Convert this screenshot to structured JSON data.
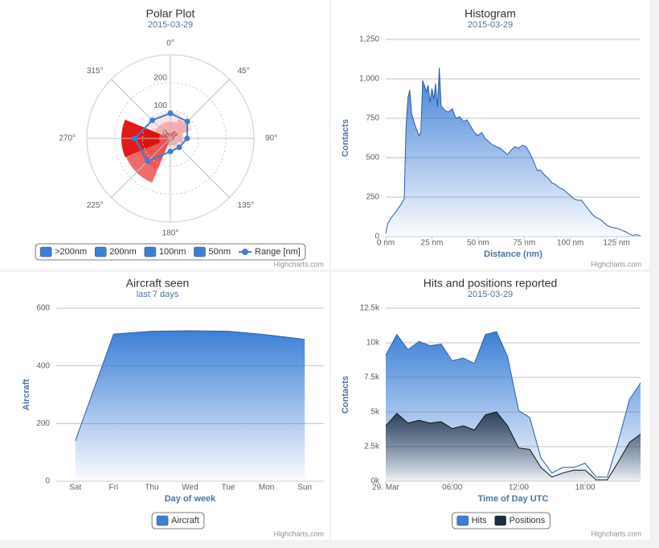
{
  "chart_data": [
    {
      "type": "polar",
      "title": "Polar Plot",
      "subtitle": "2015-03-29",
      "x": [
        0,
        45,
        90,
        135,
        180,
        225,
        270,
        315
      ],
      "xlim": [
        0,
        360
      ],
      "xticks": [
        {
          "value": 0,
          "label": "0°"
        },
        {
          "value": 45,
          "label": "45°"
        },
        {
          "value": 90,
          "label": "90°"
        },
        {
          "value": 135,
          "label": "135°"
        },
        {
          "value": 180,
          "label": "180°"
        },
        {
          "value": 225,
          "label": "225°"
        },
        {
          "value": 270,
          "label": "270°"
        },
        {
          "value": 315,
          "label": "315°"
        }
      ],
      "ylim": [
        0,
        300
      ],
      "yticks": [
        0,
        100,
        200
      ],
      "grid": true,
      "legend": "bottom",
      "legend_symbol_color": "#3d7fd6",
      "series": [
        {
          "name": ">200nm",
          "color": "#ef5b5b",
          "values": [
            20,
            30,
            15,
            10,
            10,
            172,
            40,
            25
          ]
        },
        {
          "name": "200nm",
          "color": "#e00000",
          "values": [
            15,
            25,
            12,
            8,
            8,
            120,
            176,
            20
          ]
        },
        {
          "name": "100nm",
          "color": "#f4a6a6",
          "values": [
            60,
            75,
            45,
            30,
            25,
            100,
            110,
            60
          ]
        },
        {
          "name": "50nm",
          "color": "#fbe0e0",
          "values": [
            95,
            85,
            50,
            45,
            45,
            60,
            55,
            95
          ]
        },
        {
          "name": "Range [nm]",
          "type": "line",
          "color": "#3d7fd6",
          "values": [
            90,
            86,
            60,
            45,
            47,
            115,
            128,
            92
          ]
        }
      ],
      "credits": "Highcharts.com"
    },
    {
      "type": "area",
      "title": "Histogram",
      "subtitle": "2015-03-29",
      "ylabel": "Contacts",
      "xlabel": "Distance (nm)",
      "x": [
        0,
        1,
        3,
        5,
        8,
        10,
        11,
        12,
        13,
        14,
        16,
        18,
        19,
        20,
        22,
        23,
        24,
        25,
        26,
        27,
        28,
        29,
        30,
        32,
        34,
        36,
        38,
        40,
        42,
        44,
        46,
        48,
        50,
        52,
        54,
        56,
        58,
        60,
        62,
        64,
        66,
        68,
        70,
        72,
        74,
        76,
        78,
        80,
        82,
        84,
        86,
        88,
        90,
        92,
        94,
        96,
        98,
        100,
        102,
        104,
        106,
        108,
        110,
        112,
        114,
        116,
        118,
        120,
        122,
        124,
        126,
        128,
        130,
        132,
        134,
        136,
        138
      ],
      "values": [
        20,
        80,
        120,
        150,
        200,
        240,
        700,
        880,
        930,
        780,
        700,
        640,
        660,
        990,
        920,
        960,
        850,
        940,
        870,
        970,
        820,
        1070,
        830,
        800,
        790,
        810,
        750,
        760,
        730,
        740,
        700,
        660,
        640,
        660,
        620,
        600,
        580,
        570,
        560,
        540,
        520,
        550,
        570,
        560,
        580,
        570,
        530,
        480,
        420,
        420,
        390,
        370,
        340,
        330,
        310,
        300,
        280,
        260,
        240,
        230,
        230,
        200,
        170,
        140,
        120,
        110,
        90,
        70,
        60,
        55,
        50,
        40,
        30,
        15,
        8,
        12,
        5
      ],
      "color": "#3d7fd6",
      "xlim": [
        0,
        138
      ],
      "xticks": [
        {
          "value": 0,
          "label": "0 nm"
        },
        {
          "value": 25,
          "label": "25 nm"
        },
        {
          "value": 50,
          "label": "50 nm"
        },
        {
          "value": 75,
          "label": "75 nm"
        },
        {
          "value": 100,
          "label": "100 nm"
        },
        {
          "value": 125,
          "label": "125 nm"
        }
      ],
      "ylim": [
        0,
        1250
      ],
      "yticks": [
        0,
        250,
        500,
        750,
        {
          "value": 1000,
          "label": "1,000"
        },
        {
          "value": 1250,
          "label": "1,250"
        }
      ],
      "grid": true,
      "credits": "Highcharts.com"
    },
    {
      "type": "area",
      "title": "Aircraft seen",
      "subtitle": "last 7 days",
      "ylabel": "Aircraft",
      "xlabel": "Day of week",
      "categories": [
        "Sat",
        "Fri",
        "Thu",
        "Wed",
        "Tue",
        "Mon",
        "Sun"
      ],
      "series": [
        {
          "name": "Aircraft",
          "color": "#3d7fd6",
          "values": [
            140,
            510,
            520,
            522,
            520,
            508,
            492
          ]
        }
      ],
      "ylim": [
        0,
        600
      ],
      "yticks": [
        0,
        200,
        400,
        600
      ],
      "grid": true,
      "legend": "bottom",
      "credits": "Highcharts.com"
    },
    {
      "type": "area",
      "title": "Hits and positions reported",
      "subtitle": "2015-03-29",
      "ylabel": "Contacts",
      "xlabel": "Time of Day UTC",
      "x": [
        0,
        1,
        2,
        3,
        4,
        5,
        6,
        7,
        8,
        9,
        10,
        11,
        12,
        13,
        14,
        15,
        16,
        17,
        18,
        19,
        20,
        21,
        22,
        23
      ],
      "xlim": [
        0,
        23
      ],
      "xticks": [
        {
          "value": 0,
          "label": "29. Mar"
        },
        {
          "value": 6,
          "label": "06:00"
        },
        {
          "value": 12,
          "label": "12:00"
        },
        {
          "value": 18,
          "label": "18:00"
        }
      ],
      "series": [
        {
          "name": "Hits",
          "color": "#3d7fd6",
          "values": [
            9100,
            10600,
            9500,
            10100,
            9800,
            9900,
            8700,
            8900,
            8500,
            10600,
            10800,
            9000,
            5100,
            4600,
            1700,
            600,
            1000,
            1000,
            1300,
            300,
            300,
            2900,
            5900,
            7100
          ]
        },
        {
          "name": "Positions",
          "color": "#1b2a40",
          "values": [
            4000,
            4900,
            4200,
            4400,
            4200,
            4300,
            3800,
            4000,
            3700,
            4800,
            5000,
            4000,
            2400,
            2300,
            1000,
            300,
            600,
            800,
            800,
            100,
            100,
            1400,
            2800,
            3400
          ]
        }
      ],
      "ylim": [
        0,
        12500
      ],
      "yticks": [
        {
          "value": 0,
          "label": "0k"
        },
        {
          "value": 2500,
          "label": "2.5k"
        },
        {
          "value": 5000,
          "label": "5k"
        },
        {
          "value": 7500,
          "label": "7.5k"
        },
        {
          "value": 10000,
          "label": "10k"
        },
        {
          "value": 12500,
          "label": "12.5k"
        }
      ],
      "grid": true,
      "legend": "bottom",
      "credits": "Highcharts.com"
    }
  ]
}
